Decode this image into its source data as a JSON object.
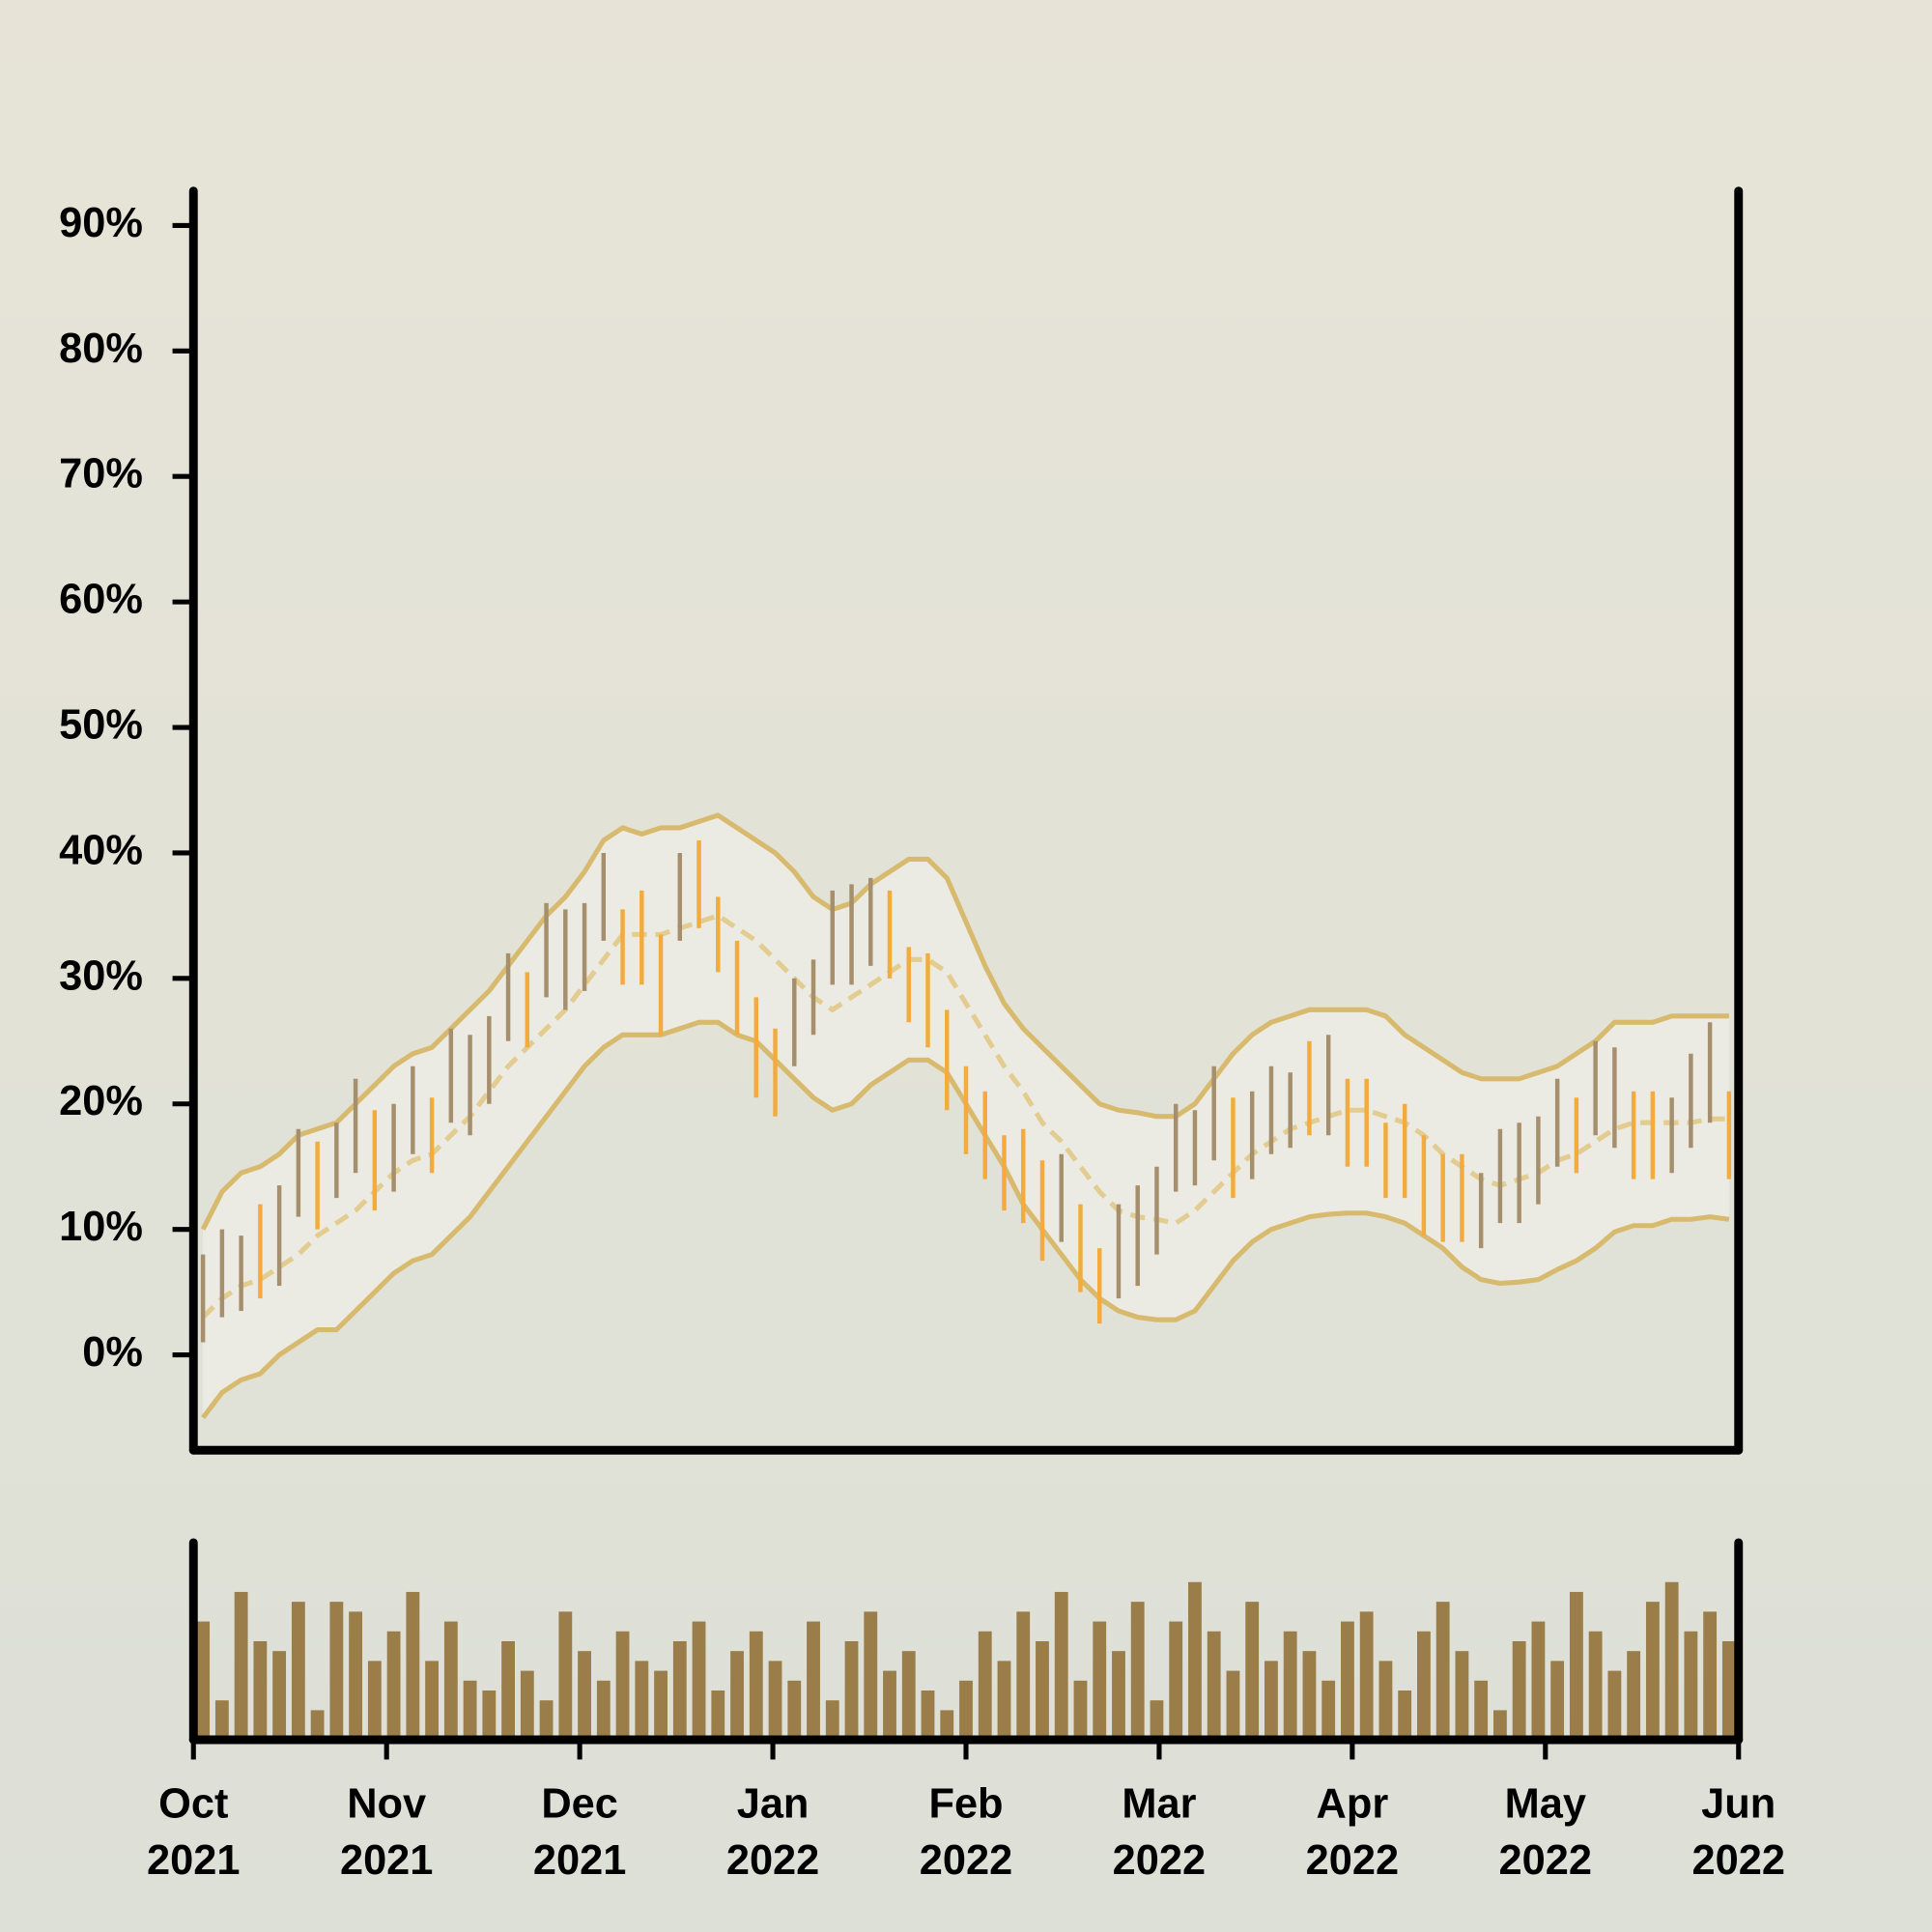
{
  "chart_data": {
    "type": "ohlc",
    "xlim": [
      "2021-10",
      "2022-06"
    ],
    "xticks": [
      {
        "value": "2021-10",
        "label": "Oct 2021"
      },
      {
        "value": "2021-11",
        "label": "Nov 2021"
      },
      {
        "value": "2021-12",
        "label": "Dec 2021"
      },
      {
        "value": "2022-01",
        "label": "Jan 2022"
      },
      {
        "value": "2022-02",
        "label": "Feb 2022"
      },
      {
        "value": "2022-03",
        "label": "Mar 2022"
      },
      {
        "value": "2022-04",
        "label": "Apr 2022"
      },
      {
        "value": "2022-05",
        "label": "May 2022"
      },
      {
        "value": "2022-06",
        "label": "Jun 2022"
      }
    ],
    "ylim": [
      -7.6,
      92.75
    ],
    "yticks": [
      {
        "value": 0,
        "label": "0%"
      },
      {
        "value": 10,
        "label": "10%"
      },
      {
        "value": 20,
        "label": "20%"
      },
      {
        "value": 30,
        "label": "30%"
      },
      {
        "value": 40,
        "label": "40%"
      },
      {
        "value": 50,
        "label": "50%"
      },
      {
        "value": 60,
        "label": "60%"
      },
      {
        "value": 70,
        "label": "70%"
      },
      {
        "value": 80,
        "label": "80%"
      },
      {
        "value": 90,
        "label": "90%"
      }
    ],
    "high": [
      8,
      10,
      9.5,
      12,
      13.5,
      18,
      17,
      18.5,
      22,
      19.5,
      20,
      23,
      20.5,
      26,
      25.5,
      27,
      32,
      30.5,
      36,
      35.5,
      36,
      40,
      35.5,
      37,
      33.5,
      40,
      41,
      36.5,
      33,
      28.5,
      26,
      30,
      31.5,
      37,
      37.5,
      38,
      37,
      32.5,
      32,
      27.5,
      23,
      21,
      17.5,
      18,
      15.5,
      16,
      12,
      8.5,
      12,
      13.5,
      15,
      20,
      19.5,
      23,
      20.5,
      21,
      23,
      22.5,
      25,
      25.5,
      22,
      22,
      18.5,
      20,
      17.5,
      16,
      16,
      14.5,
      18,
      18.5,
      19,
      22,
      20.5,
      25,
      24.5,
      21,
      21,
      20.5,
      24,
      26.5,
      21
    ],
    "low": [
      1,
      3,
      3.5,
      4.5,
      5.5,
      11,
      10,
      12.5,
      14.5,
      11.5,
      13,
      16,
      14.5,
      18.5,
      17.5,
      20,
      25,
      24.5,
      28.5,
      27.5,
      29,
      33,
      29.5,
      29.5,
      25.5,
      33,
      34,
      30.5,
      25.5,
      20.5,
      19,
      23,
      25.5,
      29.5,
      29.5,
      31,
      30,
      26.5,
      24.5,
      19.5,
      16,
      14,
      11.5,
      10.5,
      7.5,
      9,
      5,
      2.5,
      4.5,
      5.5,
      8,
      13,
      13.5,
      15.5,
      12.5,
      14,
      16,
      16.5,
      17.5,
      17.5,
      15,
      15,
      12.5,
      12.5,
      9.5,
      9,
      9,
      8.5,
      10.5,
      10.5,
      12,
      15,
      14.5,
      17.5,
      16.5,
      14,
      14,
      14.5,
      16.5,
      18.5,
      14
    ],
    "rising": [
      true,
      true,
      true,
      false,
      true,
      true,
      false,
      true,
      true,
      false,
      true,
      true,
      false,
      true,
      true,
      true,
      true,
      false,
      true,
      true,
      true,
      true,
      false,
      false,
      false,
      true,
      false,
      false,
      false,
      false,
      false,
      true,
      true,
      true,
      true,
      true,
      false,
      false,
      false,
      false,
      false,
      false,
      false,
      false,
      false,
      true,
      false,
      false,
      true,
      true,
      true,
      true,
      true,
      true,
      false,
      true,
      true,
      true,
      false,
      true,
      false,
      false,
      false,
      false,
      false,
      false,
      false,
      true,
      true,
      true,
      true,
      true,
      false,
      true,
      true,
      false,
      false,
      true,
      true,
      true,
      false
    ],
    "colors": {
      "rising": "#a58f6c",
      "falling": "#f2ab3c"
    },
    "upper": [
      10,
      13,
      14.5,
      15,
      16,
      17.5,
      18,
      18.5,
      20,
      21.5,
      23,
      24,
      24.5,
      26,
      27.5,
      29,
      31,
      33,
      35,
      36.5,
      38.5,
      41,
      42,
      41.5,
      42,
      42,
      42.5,
      43,
      42,
      41,
      40,
      38.5,
      36.5,
      35.5,
      36,
      37.5,
      38.5,
      39.5,
      39.5,
      38,
      34.5,
      31,
      28,
      26,
      24.5,
      23,
      21.5,
      20,
      19.5,
      19.3,
      19,
      19,
      20,
      22,
      24,
      25.5,
      26.5,
      27,
      27.5,
      27.5,
      27.5,
      27.5,
      27,
      25.5,
      24.5,
      23.5,
      22.5,
      22,
      22,
      22,
      22.5,
      23,
      24,
      25,
      26.5,
      26.5,
      26.5,
      27,
      27,
      27,
      27
    ],
    "middle": [
      3,
      4.5,
      5.5,
      6,
      7,
      8,
      9.5,
      10.5,
      11.5,
      13,
      14.5,
      15.5,
      16,
      17.5,
      19,
      21,
      23,
      24.5,
      26,
      27.5,
      29.5,
      31.5,
      33.5,
      33.5,
      33.5,
      34,
      34.5,
      35,
      34,
      33,
      31.5,
      30,
      28.5,
      27.5,
      28.5,
      29.5,
      30.5,
      31.5,
      31.5,
      30.5,
      28,
      25.5,
      23,
      21,
      18.5,
      17,
      15,
      13,
      11.5,
      11,
      10.8,
      10.5,
      11.5,
      13,
      14.5,
      16,
      17,
      18,
      18.5,
      19,
      19.5,
      19.5,
      19,
      18.5,
      17.5,
      16,
      15,
      14,
      13.5,
      14,
      14.5,
      15.5,
      16,
      17,
      18,
      18.5,
      18.5,
      18.5,
      18.5,
      18.8,
      18.8
    ],
    "lower": [
      -5,
      -3,
      -2,
      -1.5,
      0,
      1,
      2,
      2,
      3.5,
      5,
      6.5,
      7.5,
      8,
      9.5,
      11,
      13,
      15,
      17,
      19,
      21,
      23,
      24.5,
      25.5,
      25.5,
      25.5,
      26,
      26.5,
      26.5,
      25.5,
      25,
      23.5,
      22,
      20.5,
      19.5,
      20,
      21.5,
      22.5,
      23.5,
      23.5,
      22.5,
      20,
      17.5,
      15,
      12,
      10,
      8,
      6,
      4.5,
      3.5,
      3,
      2.8,
      2.8,
      3.5,
      5.5,
      7.5,
      9,
      10,
      10.5,
      11,
      11.2,
      11.3,
      11.3,
      11,
      10.5,
      9.5,
      8.5,
      7,
      6,
      5.7,
      5.8,
      6,
      6.8,
      7.5,
      8.5,
      9.8,
      10.3,
      10.3,
      10.8,
      10.8,
      11,
      10.8
    ],
    "band_color": "#d8ba6e",
    "middle_color": "#e2cc90",
    "volume": [
      60,
      20,
      75,
      50,
      45,
      70,
      15,
      70,
      65,
      40,
      55,
      75,
      40,
      60,
      30,
      25,
      50,
      35,
      20,
      65,
      45,
      30,
      55,
      40,
      35,
      50,
      60,
      25,
      45,
      55,
      40,
      30,
      60,
      20,
      50,
      65,
      35,
      45,
      25,
      15,
      30,
      55,
      40,
      65,
      50,
      75,
      30,
      60,
      45,
      70,
      20,
      60,
      80,
      55,
      35,
      70,
      40,
      55,
      45,
      30,
      60,
      65,
      40,
      25,
      55,
      70,
      45,
      30,
      15,
      50,
      60,
      40,
      75,
      55,
      35,
      45,
      70,
      80,
      55,
      65,
      50
    ],
    "volume_color": "#9a7d48",
    "volume_ylim": [
      0,
      100
    ]
  }
}
